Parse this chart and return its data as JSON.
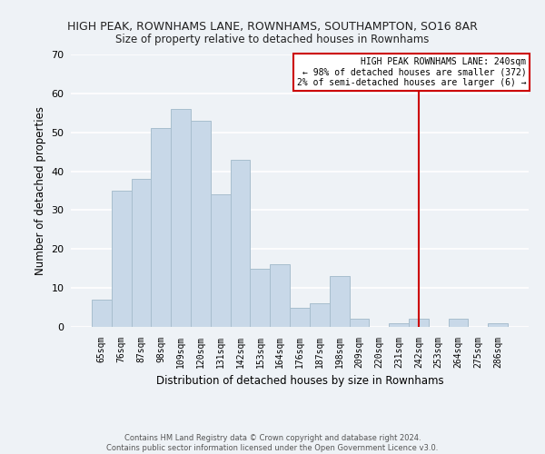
{
  "title": "HIGH PEAK, ROWNHAMS LANE, ROWNHAMS, SOUTHAMPTON, SO16 8AR",
  "subtitle": "Size of property relative to detached houses in Rownhams",
  "xlabel": "Distribution of detached houses by size in Rownhams",
  "ylabel": "Number of detached properties",
  "bar_labels": [
    "65sqm",
    "76sqm",
    "87sqm",
    "98sqm",
    "109sqm",
    "120sqm",
    "131sqm",
    "142sqm",
    "153sqm",
    "164sqm",
    "176sqm",
    "187sqm",
    "198sqm",
    "209sqm",
    "220sqm",
    "231sqm",
    "242sqm",
    "253sqm",
    "264sqm",
    "275sqm",
    "286sqm"
  ],
  "bar_values": [
    7,
    35,
    38,
    51,
    56,
    53,
    34,
    43,
    15,
    16,
    5,
    6,
    13,
    2,
    0,
    1,
    2,
    0,
    2,
    0,
    1
  ],
  "bar_color": "#c8d8e8",
  "bar_edge_color": "#a8bece",
  "ylim": [
    0,
    70
  ],
  "yticks": [
    0,
    10,
    20,
    30,
    40,
    50,
    60,
    70
  ],
  "vline_x": 16,
  "vline_color": "#cc0000",
  "legend_title": "HIGH PEAK ROWNHAMS LANE: 240sqm",
  "legend_line1": "← 98% of detached houses are smaller (372)",
  "legend_line2": "2% of semi-detached houses are larger (6) →",
  "legend_box_color": "#cc0000",
  "footer_line1": "Contains HM Land Registry data © Crown copyright and database right 2024.",
  "footer_line2": "Contains public sector information licensed under the Open Government Licence v3.0.",
  "background_color": "#eef2f6",
  "grid_color": "#ffffff"
}
